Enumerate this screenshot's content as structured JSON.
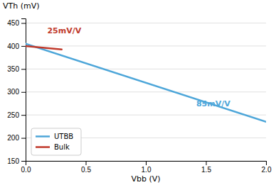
{
  "chart_data": {
    "type": "line",
    "ylabel": "VTh (mV)",
    "xlabel": "Vbb (V)",
    "series": [
      {
        "name": "UTBB",
        "color": "#4da6d9",
        "x": [
          0,
          2.0
        ],
        "values": [
          405,
          235
        ]
      },
      {
        "name": "Bulk",
        "color": "#c0392b",
        "x": [
          0,
          0.3
        ],
        "values": [
          400,
          392.5
        ]
      }
    ],
    "annotations": [
      {
        "text": "25mV/V",
        "x": 0.18,
        "y": 427,
        "color": "#c0392b"
      },
      {
        "text": "85mV/V",
        "x": 1.42,
        "y": 268,
        "color": "#4da6d9"
      }
    ],
    "xlim": [
      0,
      2.0
    ],
    "ylim": [
      150,
      460
    ],
    "xticks": [
      {
        "value": 0,
        "label": "0.0"
      },
      0.5,
      {
        "value": 1.0,
        "label": "1.0"
      },
      1.5,
      {
        "value": 2.0,
        "label": "2.0"
      }
    ],
    "yticks": [
      150,
      200,
      250,
      300,
      350,
      400,
      450
    ],
    "grid": true,
    "legend": "lower left"
  }
}
